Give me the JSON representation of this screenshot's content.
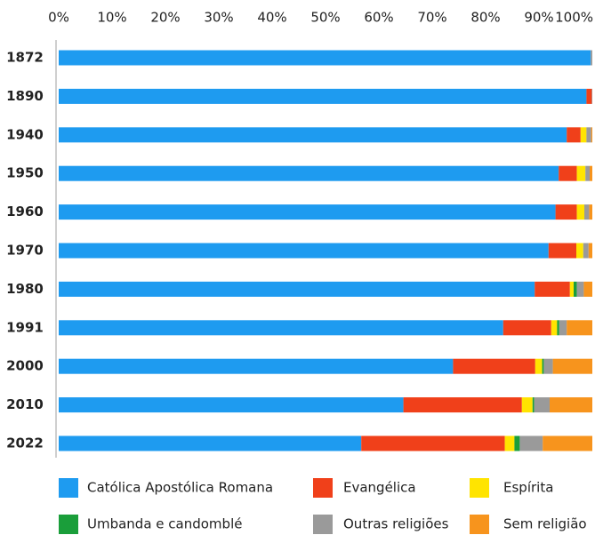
{
  "chart_data": {
    "type": "stacked-bar-horizontal",
    "categories": [
      "1872",
      "1890",
      "1940",
      "1950",
      "1960",
      "1970",
      "1980",
      "1991",
      "2000",
      "2010",
      "2022"
    ],
    "series": [
      {
        "name": "Católica Apostólica Romana",
        "color": "#1e9bf0",
        "values": [
          99.7,
          98.9,
          95.2,
          93.7,
          93.1,
          91.8,
          89.2,
          83.3,
          73.9,
          64.6,
          56.7
        ]
      },
      {
        "name": "Evangélica",
        "color": "#f0401a",
        "values": [
          0,
          1.0,
          2.6,
          3.4,
          4.0,
          5.2,
          6.6,
          9.0,
          15.4,
          22.2,
          26.9
        ]
      },
      {
        "name": "Espírita",
        "color": "#ffe400",
        "values": [
          0,
          0,
          1.1,
          1.6,
          1.4,
          1.3,
          0.7,
          1.1,
          1.3,
          2.0,
          1.8
        ]
      },
      {
        "name": "Umbanda e candomblé",
        "color": "#1a9e3a",
        "values": [
          0,
          0,
          0,
          0,
          0,
          0,
          0.6,
          0.4,
          0.3,
          0.3,
          1.0
        ]
      },
      {
        "name": "Outras religiões",
        "color": "#9a9a9a",
        "values": [
          0.3,
          0.1,
          0.9,
          0.8,
          0.9,
          1.0,
          1.3,
          1.4,
          1.7,
          2.9,
          4.3
        ]
      },
      {
        "name": "Sem religião",
        "color": "#f7941d",
        "values": [
          0,
          0,
          0.2,
          0.5,
          0.6,
          0.7,
          1.6,
          4.8,
          7.4,
          8.0,
          9.3
        ]
      }
    ],
    "xlim": [
      0,
      100
    ],
    "xticks": [
      {
        "value": 0,
        "label": "0%"
      },
      {
        "value": 10,
        "label": "10%"
      },
      {
        "value": 20,
        "label": "20%"
      },
      {
        "value": 30,
        "label": "30%"
      },
      {
        "value": 40,
        "label": "40%"
      },
      {
        "value": 50,
        "label": "50%"
      },
      {
        "value": 60,
        "label": "60%"
      },
      {
        "value": 70,
        "label": "70%"
      },
      {
        "value": 80,
        "label": "80%"
      },
      {
        "value": 90,
        "label": "90%"
      },
      {
        "value": 100,
        "label": "100%"
      }
    ],
    "legend": "bottom"
  }
}
